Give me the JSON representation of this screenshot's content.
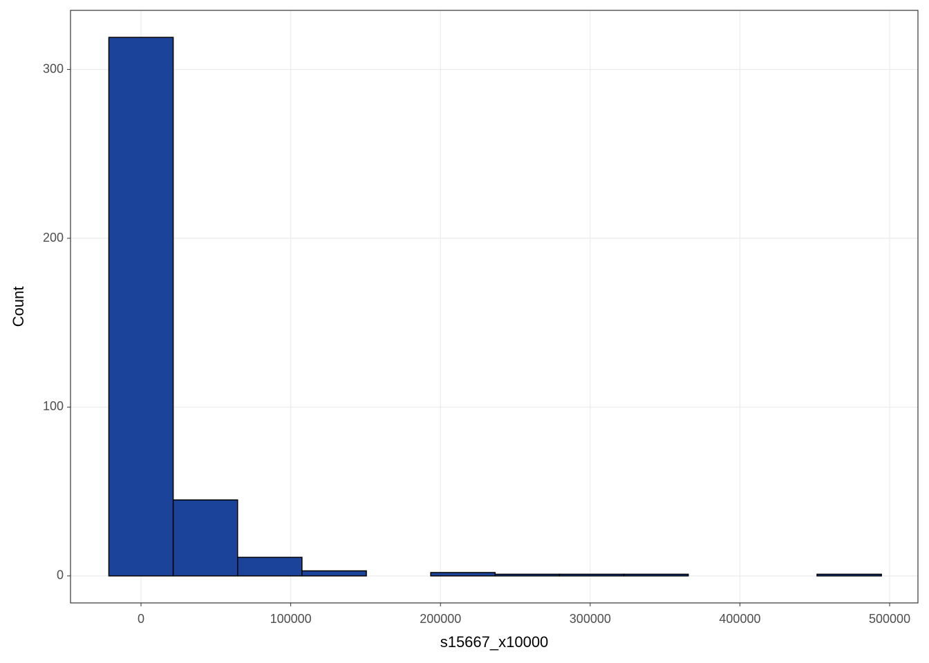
{
  "chart_data": {
    "type": "histogram",
    "x_label": "s15667_x10000",
    "y_label": "Count",
    "bins": [
      -21500,
      21500,
      64500,
      107500,
      150500,
      193500,
      236500,
      279500,
      322500,
      365500,
      408500,
      451500,
      494500
    ],
    "values": [
      319,
      45,
      11,
      3,
      0,
      2,
      1,
      1,
      1,
      0,
      0,
      1
    ],
    "color": "#1a4399",
    "edge_color": "#000000",
    "xlim": [
      -47100,
      518900
    ],
    "xticks": [
      0,
      100000,
      200000,
      300000,
      400000,
      500000
    ],
    "ylim": [
      -16,
      335
    ],
    "yticks": [
      0,
      100,
      200,
      300
    ],
    "grid": true
  }
}
